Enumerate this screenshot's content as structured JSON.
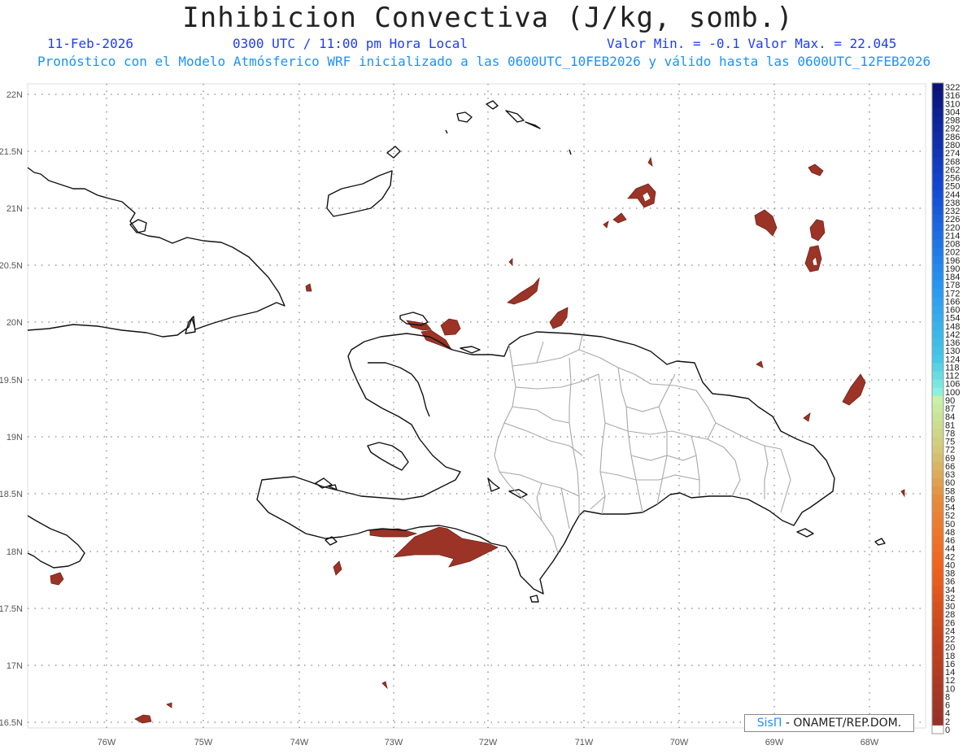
{
  "header": {
    "title": "Inhibicion Convectiva (J/kg, somb.)",
    "date": "11-Feb-2026",
    "time": "0300 UTC / 11:00 pm Hora Local",
    "minmax": "Valor Min. = -0.1  Valor Max. = 22.045",
    "subtitle": "Pronóstico con el Modelo Atmósferico WRF inicializado a las 0600UTC_10FEB2026 y válido hasta las  0600UTC_12FEB2026"
  },
  "axes": {
    "lat_labels": [
      "22N",
      "21.5N",
      "21N",
      "20.5N",
      "20N",
      "19.5N",
      "19N",
      "18.5N",
      "18N",
      "17.5N",
      "17N",
      "16.5N"
    ],
    "lon_labels": [
      "76W",
      "75W",
      "74W",
      "73W",
      "72W",
      "71W",
      "70W",
      "69W",
      "68W"
    ]
  },
  "colorbar": {
    "labels": [
      "322",
      "316",
      "310",
      "304",
      "298",
      "292",
      "286",
      "280",
      "274",
      "268",
      "262",
      "256",
      "250",
      "244",
      "238",
      "232",
      "226",
      "220",
      "214",
      "208",
      "202",
      "196",
      "190",
      "184",
      "178",
      "172",
      "166",
      "160",
      "154",
      "148",
      "142",
      "136",
      "130",
      "124",
      "118",
      "112",
      "106",
      "100",
      "90",
      "87",
      "84",
      "81",
      "78",
      "75",
      "72",
      "69",
      "66",
      "63",
      "60",
      "58",
      "56",
      "54",
      "52",
      "50",
      "48",
      "46",
      "44",
      "42",
      "40",
      "38",
      "36",
      "34",
      "32",
      "30",
      "28",
      "26",
      "24",
      "22",
      "20",
      "18",
      "16",
      "14",
      "12",
      "10",
      "8",
      "6",
      "4",
      "2",
      "0"
    ]
  },
  "credit": {
    "brand": "SisΠ",
    "org": " - ONAMET/REP.DOM."
  },
  "colors": {
    "shading": "#9b3427",
    "coast": "#111111",
    "provinces": "#a8a8a8",
    "grid": "#999999",
    "header_blue": "#1e3cff",
    "subtitle_blue": "#1e90ff"
  }
}
